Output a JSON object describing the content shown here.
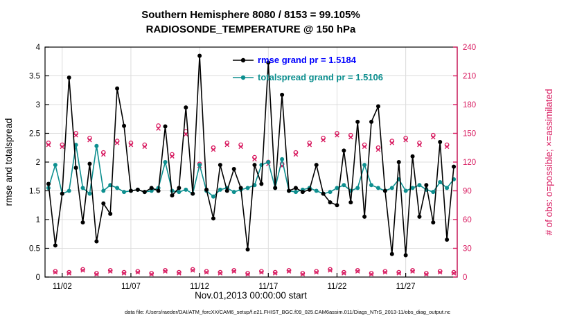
{
  "figure": {
    "title": "Southern Hemisphere 8080 / 8153 = 99.105%",
    "subtitle": "RADIOSONDE_TEMPERATURE @ 150 hPa",
    "caption": "data file: /Users/raeder/DAI/ATM_forcXX/CAM6_setup/f.e21.FHIST_BGC.f09_025.CAM6assim.011/Diags_NTrS_2013-11/obs_diag_output.nc"
  },
  "legend": {
    "rmse_label": "rmse grand pr = 1.5184",
    "totalspread_label": "totalspread grand pr = 1.5106",
    "rmse_grand_pr": 1.5184,
    "totalspread_grand_pr": 1.5106
  },
  "colors": {
    "rmse": "#000000",
    "totalspread": "#0d8f8f",
    "obs": "#d81b60",
    "legend_rmse_text": "#0000ff",
    "grid": "#dcdcdc",
    "axis": "#000000"
  },
  "chart_data": {
    "type": "line",
    "title": "Southern Hemisphere 8080 / 8153 = 99.105%",
    "subtitle": "RADIOSONDE_TEMPERATURE @ 150 hPa",
    "xlabel": "Nov.01,2013 00:00:00 start",
    "ylabel_left": "rmse and totalspread",
    "ylabel_right": "# of obs: o=possible; ×=assimilated",
    "x_range": [
      0.75,
      30.75
    ],
    "ylim_left": [
      0,
      4
    ],
    "ytick_step_left": 0.5,
    "ylim_right": [
      0,
      240
    ],
    "ytick_step_right": 30,
    "grid": true,
    "legend_position": "top-center-inside",
    "xticks": [
      {
        "day": 2,
        "label": "11/02"
      },
      {
        "day": 7,
        "label": "11/07"
      },
      {
        "day": 12,
        "label": "11/12"
      },
      {
        "day": 17,
        "label": "11/17"
      },
      {
        "day": 22,
        "label": "11/22"
      },
      {
        "day": 27,
        "label": "11/27"
      }
    ],
    "x_days": [
      1,
      1.5,
      2,
      2.5,
      3,
      3.5,
      4,
      4.5,
      5,
      5.5,
      6,
      6.5,
      7,
      7.5,
      8,
      8.5,
      9,
      9.5,
      10,
      10.5,
      11,
      11.5,
      12,
      12.5,
      13,
      13.5,
      14,
      14.5,
      15,
      15.5,
      16,
      16.5,
      17,
      17.5,
      18,
      18.5,
      19,
      19.5,
      20,
      20.5,
      21,
      21.5,
      22,
      22.5,
      23,
      23.5,
      24,
      24.5,
      25,
      25.5,
      26,
      26.5,
      27,
      27.5,
      28,
      28.5,
      29,
      29.5,
      30,
      30.5
    ],
    "series": [
      {
        "name": "rmse",
        "color": "#000000",
        "values": [
          1.62,
          0.55,
          1.45,
          3.47,
          1.9,
          0.95,
          1.97,
          0.62,
          1.28,
          1.1,
          3.28,
          2.63,
          1.5,
          1.52,
          1.48,
          1.55,
          1.5,
          2.62,
          1.42,
          1.55,
          2.95,
          1.45,
          3.85,
          1.52,
          1.02,
          1.95,
          1.5,
          1.88,
          1.55,
          0.48,
          1.95,
          1.62,
          3.73,
          1.55,
          3.17,
          1.5,
          1.55,
          1.48,
          1.52,
          1.95,
          1.45,
          1.3,
          1.25,
          2.2,
          1.3,
          2.7,
          1.05,
          2.7,
          2.97,
          1.5,
          0.4,
          2.0,
          0.38,
          2.1,
          1.05,
          1.6,
          0.95,
          2.35,
          0.65,
          1.92
        ]
      },
      {
        "name": "totalspread",
        "color": "#0d8f8f",
        "values": [
          1.55,
          1.95,
          1.45,
          1.5,
          2.3,
          1.55,
          1.45,
          2.28,
          1.5,
          1.6,
          1.55,
          1.48,
          1.5,
          1.52,
          1.48,
          1.5,
          1.55,
          2.0,
          1.5,
          1.48,
          1.52,
          1.45,
          1.95,
          1.5,
          1.4,
          1.52,
          1.55,
          1.48,
          1.52,
          1.55,
          1.6,
          1.95,
          2.0,
          1.55,
          2.05,
          1.5,
          1.48,
          1.52,
          1.55,
          1.5,
          1.45,
          1.48,
          1.55,
          1.6,
          1.5,
          1.55,
          1.95,
          1.6,
          1.55,
          1.5,
          1.55,
          1.7,
          1.5,
          1.55,
          1.6,
          1.52,
          1.48,
          1.65,
          1.55,
          1.7
        ]
      }
    ],
    "obs_possible": [
      140,
      6,
      138,
      5,
      150,
      8,
      145,
      4,
      130,
      7,
      142,
      5,
      140,
      6,
      138,
      4,
      158,
      7,
      128,
      5,
      152,
      8,
      118,
      6,
      135,
      5,
      140,
      7,
      138,
      4,
      125,
      6,
      120,
      5,
      118,
      7,
      130,
      4,
      140,
      6,
      145,
      8,
      150,
      5,
      148,
      7,
      138,
      4,
      135,
      6,
      142,
      5,
      145,
      7,
      140,
      4,
      148,
      6,
      138,
      5
    ],
    "obs_assimilated": [
      138,
      5,
      136,
      4,
      148,
      7,
      143,
      3,
      128,
      6,
      140,
      4,
      138,
      5,
      136,
      3,
      155,
      6,
      126,
      4,
      149,
      7,
      116,
      5,
      133,
      4,
      138,
      6,
      136,
      3,
      123,
      5,
      118,
      4,
      116,
      6,
      128,
      3,
      138,
      5,
      143,
      7,
      148,
      4,
      146,
      6,
      136,
      3,
      133,
      5,
      140,
      4,
      143,
      6,
      138,
      3,
      146,
      5,
      136,
      4
    ]
  }
}
